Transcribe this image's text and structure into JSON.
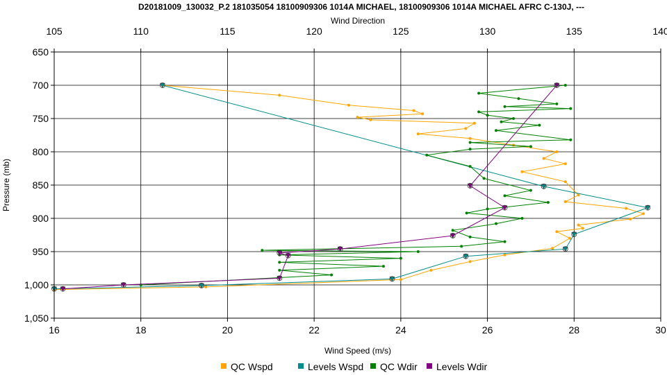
{
  "chart_data": {
    "type": "line",
    "title": "D20181009_130032_P.2 181035054 18100909306 1014A MICHAEL, 18100909306 1014A MICHAEL AFRC C-130J, ---",
    "xlabel": "Wind Speed (m/s)",
    "x2label": "Wind Direction",
    "ylabel": "Pressure (mb)",
    "xlim": [
      16,
      30
    ],
    "x2lim": [
      105,
      140
    ],
    "ylim": [
      650,
      1050
    ],
    "y_inverted": true,
    "grid": true,
    "legend_position": "bottom",
    "x_ticks": [
      "16",
      "18",
      "20",
      "22",
      "24",
      "26",
      "28",
      "30"
    ],
    "x2_ticks": [
      "105",
      "110",
      "115",
      "120",
      "125",
      "130",
      "135",
      "140"
    ],
    "y_ticks": [
      "650",
      "700",
      "750",
      "800",
      "850",
      "900",
      "950",
      "1,000",
      "1,050"
    ],
    "series": [
      {
        "name": "QC Wspd",
        "color": "#FFA500",
        "axis": "bottom",
        "marker": "dot",
        "x": [
          18.5,
          21.2,
          22.8,
          24.3,
          24.5,
          23.0,
          23.3,
          25.7,
          25.5,
          24.4,
          25.6,
          26.6,
          27.6,
          27.3,
          27.8,
          26.8,
          27.8,
          28.1,
          27.8,
          29.2,
          29.6,
          29.3,
          28.1,
          28.2,
          27.6,
          27.9,
          27.5,
          26.4,
          25.6,
          24.7,
          24.0,
          19.5,
          16.0
        ],
        "y": [
          700,
          715,
          730,
          738,
          743,
          748,
          752,
          757,
          765,
          773,
          780,
          790,
          800,
          810,
          818,
          830,
          845,
          865,
          875,
          885,
          893,
          901,
          910,
          915,
          920,
          930,
          945,
          955,
          965,
          978,
          992,
          1003,
          1007
        ]
      },
      {
        "name": "Levels Wspd",
        "color": "#008B8B",
        "axis": "bottom",
        "marker": "triangle",
        "x": [
          18.5,
          27.3,
          29.7,
          28.0,
          27.8,
          25.5,
          23.8,
          19.4,
          16.0
        ],
        "y": [
          700,
          852,
          884,
          924,
          946,
          957,
          991,
          1001,
          1006
        ]
      },
      {
        "name": "QC Wdir",
        "color": "#008000",
        "axis": "top",
        "marker": "dot",
        "x": [
          134.5,
          129.5,
          131.8,
          134.0,
          131.0,
          134.8,
          129.5,
          130.0,
          131.5,
          130.8,
          133.0,
          130.5,
          134.8,
          129.0,
          132.5,
          129.0,
          126.5,
          129.0,
          129.8,
          132.5,
          131.0,
          133.5,
          130.0,
          128.8,
          132.0,
          130.5,
          128.0,
          129.0,
          131.0,
          128.5,
          117.0,
          126.0,
          118.0,
          125.0,
          118.0,
          124.0,
          118.0,
          121.0,
          110.0
        ],
        "y": [
          700,
          712,
          720,
          728,
          732,
          735,
          740,
          745,
          750,
          755,
          760,
          768,
          782,
          786,
          792,
          796,
          805,
          822,
          840,
          858,
          866,
          876,
          886,
          892,
          900,
          908,
          918,
          928,
          935,
          942,
          948,
          950,
          955,
          960,
          966,
          972,
          978,
          985,
          1000
        ]
      },
      {
        "name": "Levels Wdir",
        "color": "#800080",
        "axis": "top",
        "marker": "triangle",
        "x": [
          134.0,
          129.0,
          131.0,
          128.0,
          121.5,
          118.0,
          118.5,
          118.0,
          109.0,
          105.5
        ],
        "y": [
          700,
          851,
          884,
          926,
          946,
          952,
          956,
          990,
          1000,
          1006
        ]
      }
    ]
  }
}
